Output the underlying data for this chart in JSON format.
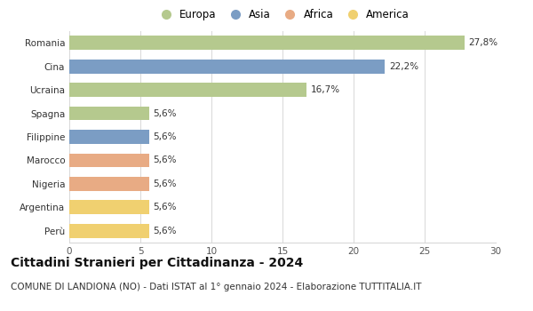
{
  "categories": [
    "Romania",
    "Cina",
    "Ucraina",
    "Spagna",
    "Filippine",
    "Marocco",
    "Nigeria",
    "Argentina",
    "Perù"
  ],
  "values": [
    27.8,
    22.2,
    16.7,
    5.6,
    5.6,
    5.6,
    5.6,
    5.6,
    5.6
  ],
  "labels": [
    "27,8%",
    "22,2%",
    "16,7%",
    "5,6%",
    "5,6%",
    "5,6%",
    "5,6%",
    "5,6%",
    "5,6%"
  ],
  "colors": [
    "#b5c98e",
    "#7b9dc4",
    "#b5c98e",
    "#b5c98e",
    "#7b9dc4",
    "#e8ab84",
    "#e8ab84",
    "#f0d070",
    "#f0d070"
  ],
  "legend_labels": [
    "Europa",
    "Asia",
    "Africa",
    "America"
  ],
  "legend_colors": [
    "#b5c98e",
    "#7b9dc4",
    "#e8ab84",
    "#f0d070"
  ],
  "xlim": [
    0,
    30
  ],
  "xticks": [
    0,
    5,
    10,
    15,
    20,
    25,
    30
  ],
  "title": "Cittadini Stranieri per Cittadinanza - 2024",
  "subtitle": "COMUNE DI LANDIONA (NO) - Dati ISTAT al 1° gennaio 2024 - Elaborazione TUTTITALIA.IT",
  "title_fontsize": 10,
  "subtitle_fontsize": 7.5,
  "label_fontsize": 7.5,
  "tick_fontsize": 7.5,
  "legend_fontsize": 8.5,
  "bg_color": "#ffffff",
  "grid_color": "#d8d8d8",
  "bar_height": 0.6
}
